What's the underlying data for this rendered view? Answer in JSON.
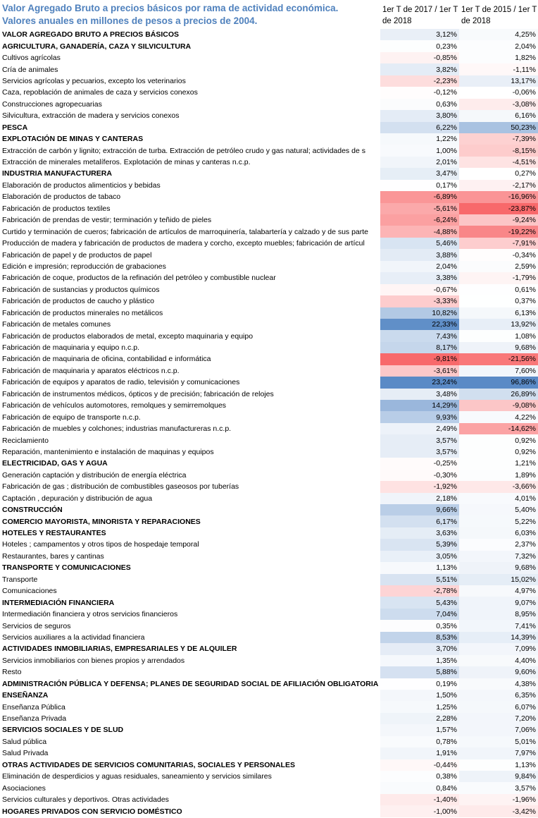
{
  "header": {
    "title": [
      "Valor Agregado Bruto a precios básicos por rama de actividad económica.",
      "Valores anuales en millones de pesos a precios de 2004."
    ],
    "columns": [
      "1er T de 2017 / 1er T de 2018",
      "1er T de 2015 / 1er T de 2018"
    ]
  },
  "table": {
    "rows": [
      [
        "VALOR AGREGADO BRUTO A PRECIOS BÁSICOS",
        "3,12%",
        "4,25%"
      ],
      [
        "AGRICULTURA, GANADERÍA, CAZA Y SILVICULTURA",
        "0,23%",
        "2,04%"
      ],
      [
        "Cultivos agrícolas",
        "-0,85%",
        "1,82%"
      ],
      [
        "Cría de animales",
        "3,82%",
        "-1,11%"
      ],
      [
        "Servicios agrícolas y pecuarios, excepto los veterinarios",
        "-2,23%",
        "13,17%"
      ],
      [
        "Caza, repoblación de animales de caza y servicios conexos",
        "-0,12%",
        "-0,06%"
      ],
      [
        "Construcciones agropecuarias",
        "0,63%",
        "-3,08%"
      ],
      [
        "Silvicultura, extracción de madera y servicios conexos",
        "3,80%",
        "6,16%"
      ],
      [
        "PESCA",
        "6,22%",
        "50,23%"
      ],
      [
        "EXPLOTACIÓN DE MINAS Y CANTERAS",
        "1,22%",
        "-7,39%"
      ],
      [
        "Extracción de carbón y lignito; extracción de turba. Extracción de petróleo crudo y gas natural; actividades de s",
        "1,00%",
        "-8,15%"
      ],
      [
        "Extracción de minerales metalíferos. Explotación de  minas y canteras n.c.p.",
        "2,01%",
        "-4,51%"
      ],
      [
        "INDUSTRIA MANUFACTURERA",
        "3,47%",
        "0,27%"
      ],
      [
        "Elaboración de productos alimenticios y bebidas",
        "0,17%",
        "-2,17%"
      ],
      [
        "Elaboración de productos de tabaco",
        "-6,89%",
        "-16,96%"
      ],
      [
        "Fabricación de productos textiles",
        "-5,61%",
        "-23,87%"
      ],
      [
        "Fabricación de prendas de vestir; terminación y teñido de pieles",
        "-6,24%",
        "-9,24%"
      ],
      [
        "Curtido y terminación de cueros; fabricación de artículos de marroquinería, talabartería y calzado y de sus parte",
        "-4,88%",
        "-19,22%"
      ],
      [
        "Producción de madera y fabricación de productos de madera y corcho, excepto muebles; fabricación de artícul",
        "5,46%",
        "-7,91%"
      ],
      [
        "Fabricación de papel y de  productos de papel",
        "3,88%",
        "-0,34%"
      ],
      [
        "Edición e impresión; reproducción de grabaciones",
        "2,04%",
        "2,59%"
      ],
      [
        "Fabricación de coque, productos de la refinación del petróleo y combustible nuclear",
        "3,38%",
        "-1,79%"
      ],
      [
        "Fabricación de sustancias y productos químicos",
        "-0,67%",
        "0,61%"
      ],
      [
        "Fabricación de productos de caucho y plástico",
        "-3,33%",
        "0,37%"
      ],
      [
        "Fabricación de productos minerales no metálicos",
        "10,82%",
        "6,13%"
      ],
      [
        "Fabricación de metales comunes",
        "22,33%",
        "13,92%"
      ],
      [
        "Fabricación de productos elaborados de metal, excepto maquinaria y equipo",
        "7,43%",
        "1,08%"
      ],
      [
        "Fabricación de maquinaria y equipo n.c.p.",
        "8,17%",
        "9,68%"
      ],
      [
        "Fabricación de maquinaria de oficina, contabilidad e informática",
        "-9,81%",
        "-21,56%"
      ],
      [
        "Fabricación de maquinaria y aparatos eléctricos  n.c.p.",
        "-3,61%",
        "7,60%"
      ],
      [
        "Fabricación de equipos y aparatos de radio, televisión y comunicaciones",
        "23,24%",
        "96,86%"
      ],
      [
        "Fabricación de instrumentos médicos, ópticos y de precisión; fabricación de relojes",
        "3,48%",
        "26,89%"
      ],
      [
        "Fabricación de vehículos automotores, remolques y semirremolques",
        "14,29%",
        "-9,08%"
      ],
      [
        "Fabricación de equipo de transporte n.c.p.",
        "9,93%",
        "4,22%"
      ],
      [
        "Fabricación de muebles y colchones; industrias manufactureras n.c.p.",
        "2,49%",
        "-14,62%"
      ],
      [
        "Reciclamiento",
        "3,57%",
        "0,92%"
      ],
      [
        "Reparación, mantenimiento e instalación de maquinas y equipos",
        "3,57%",
        "0,92%"
      ],
      [
        "ELECTRICIDAD, GAS Y AGUA",
        "-0,25%",
        "1,21%"
      ],
      [
        "Generación captación y distribución de energía eléctrica",
        "-0,30%",
        "1,89%"
      ],
      [
        "Fabricación de gas ; distribución de combustibles gaseosos por tuberías",
        "-1,92%",
        "-3,66%"
      ],
      [
        "Captación , depuración y distribución de agua",
        "2,18%",
        "4,01%"
      ],
      [
        "CONSTRUCCIÓN",
        "9,66%",
        "5,40%"
      ],
      [
        "COMERCIO MAYORISTA, MINORISTA Y REPARACIONES",
        "6,17%",
        "5,22%"
      ],
      [
        "HOTELES Y RESTAURANTES",
        "3,63%",
        "6,03%"
      ],
      [
        "Hoteles ; campamentos y otros tipos de hospedaje temporal",
        "5,39%",
        "2,37%"
      ],
      [
        "Restaurantes, bares y cantinas",
        "3,05%",
        "7,32%"
      ],
      [
        "TRANSPORTE Y COMUNICACIONES",
        "1,13%",
        "9,68%"
      ],
      [
        "Transporte",
        "5,51%",
        "15,02%"
      ],
      [
        "Comunicaciones",
        "-2,78%",
        "4,97%"
      ],
      [
        "INTERMEDIACIÓN FINANCIERA",
        "5,43%",
        "9,07%"
      ],
      [
        "Intermediación financiera y otros servicios financieros",
        "7,04%",
        "8,95%"
      ],
      [
        "Servicios de seguros",
        "0,35%",
        "7,41%"
      ],
      [
        "Servicios auxiliares a la actividad financiera",
        "8,53%",
        "14,39%"
      ],
      [
        "ACTIVIDADES INMOBILIARIAS, EMPRESARIALES Y DE ALQUILER",
        "3,70%",
        "7,09%"
      ],
      [
        "Servicios inmobiliarios con bienes propios y arrendados",
        "1,35%",
        "4,40%"
      ],
      [
        "Resto",
        "5,88%",
        "9,60%"
      ],
      [
        "ADMINISTRACIÓN PÚBLICA Y DEFENSA; PLANES DE SEGURIDAD SOCIAL DE AFILIACIÓN OBLIGATORIA",
        "0,19%",
        "4,38%"
      ],
      [
        "ENSEÑANZA",
        "1,50%",
        "6,35%"
      ],
      [
        "Enseñanza Pública",
        "1,25%",
        "6,07%"
      ],
      [
        "Enseñanza Privada",
        "2,28%",
        "7,20%"
      ],
      [
        "SERVICIOS SOCIALES Y DE SLUD",
        "1,57%",
        "7,06%"
      ],
      [
        "Salud pública",
        "0,78%",
        "5,01%"
      ],
      [
        "Salud Privada",
        "1,91%",
        "7,97%"
      ],
      [
        "OTRAS ACTIVIDADES DE SERVICIOS COMUNITARIAS, SOCIALES Y PERSONALES",
        "-0,44%",
        "1,13%"
      ],
      [
        "Eliminación de desperdicios y aguas residuales, saneamiento y servicios similares",
        "0,38%",
        "9,84%"
      ],
      [
        "Asociaciones",
        "0,84%",
        "3,57%"
      ],
      [
        "Servicios culturales y deportivos. Otras actividades",
        "-1,40%",
        "-1,96%"
      ],
      [
        "HOGARES PRIVADOS CON SERVICIO DOMÉSTICO",
        "-1,00%",
        "-3,42%"
      ]
    ]
  }
}
